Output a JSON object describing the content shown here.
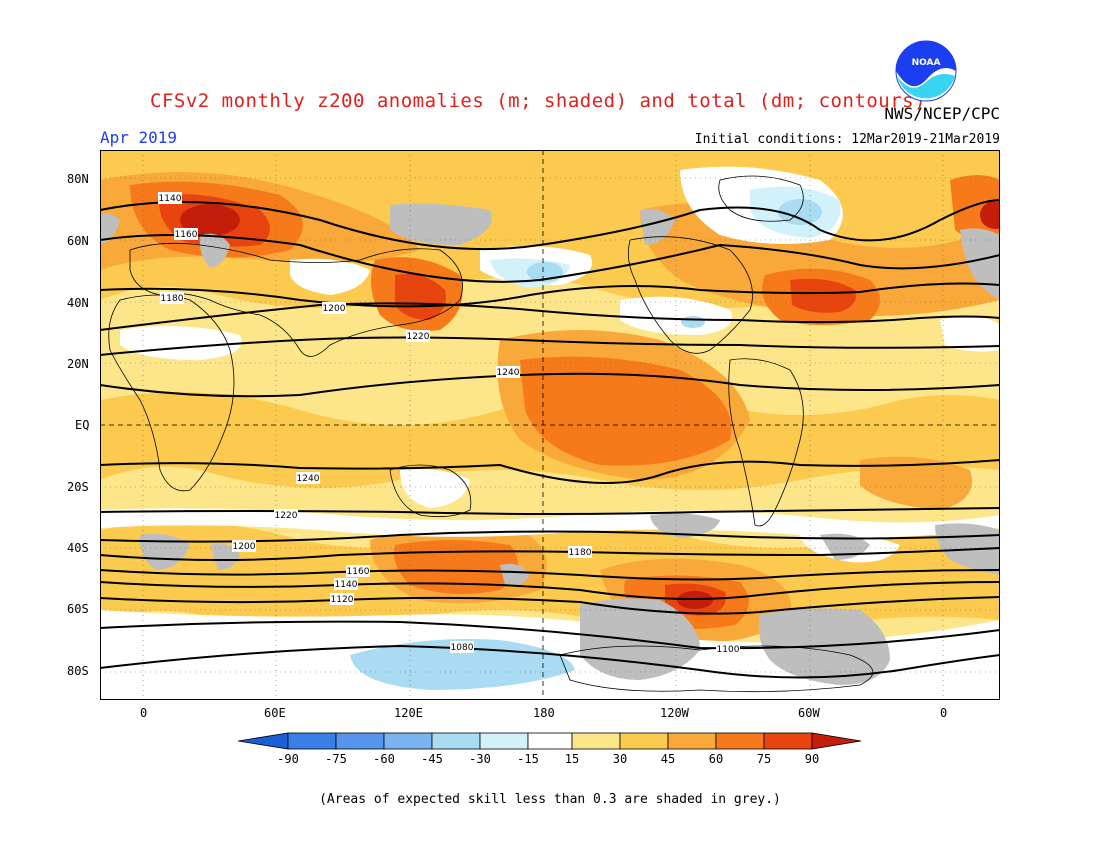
{
  "title": "CFSv2 monthly z200 anomalies (m; shaded) and total (dm; contours)",
  "month": "Apr 2019",
  "initial_conditions": "Initial conditions: 12Mar2019-21Mar2019",
  "agency": "NWS/NCEP/CPC",
  "logo_text": "NOAA",
  "footer": "(Areas of expected skill less than 0.3 are shaded in grey.)",
  "colors": {
    "title": "#e0201b",
    "month": "#1b3ff0",
    "grey_skill": "#bebebe",
    "neg90": "#1a5fd6",
    "neg75": "#3a7fe8",
    "neg60": "#5595ec",
    "neg45": "#7bb3f0",
    "neg30": "#a9dcf2",
    "neg15": "#d2f2fb",
    "zero": "#ffffff",
    "pos15": "#fde68a",
    "pos30": "#fcca4e",
    "pos45": "#f9a93a",
    "pos60": "#f77a1a",
    "pos75": "#e8440f",
    "pos90": "#c41e0a"
  },
  "lat_labels": [
    "80N",
    "60N",
    "40N",
    "20N",
    "EQ",
    "20S",
    "40S",
    "60S",
    "80S"
  ],
  "lon_labels": [
    "0",
    "60E",
    "120E",
    "180",
    "120W",
    "60W",
    "0"
  ],
  "colorbar_labels": [
    "-90",
    "-75",
    "-60",
    "-45",
    "-30",
    "-15",
    "15",
    "30",
    "45",
    "60",
    "75",
    "90"
  ],
  "contours": {
    "c1140_nh": "1140",
    "c1160_nh": "1160",
    "c1180_nh": "1180",
    "c1200_nh": "1200",
    "c1220_nh": "1220",
    "c1240_nh": "1240",
    "c1240_sh": "1240",
    "c1220_sh": "1220",
    "c1200_sh": "1200",
    "c1180_sh": "1180",
    "c1160_sh": "1160",
    "c1140_sh": "1140",
    "c1120_sh": "1120",
    "c1100_sh": "1100",
    "c1080_sh": "1080"
  }
}
